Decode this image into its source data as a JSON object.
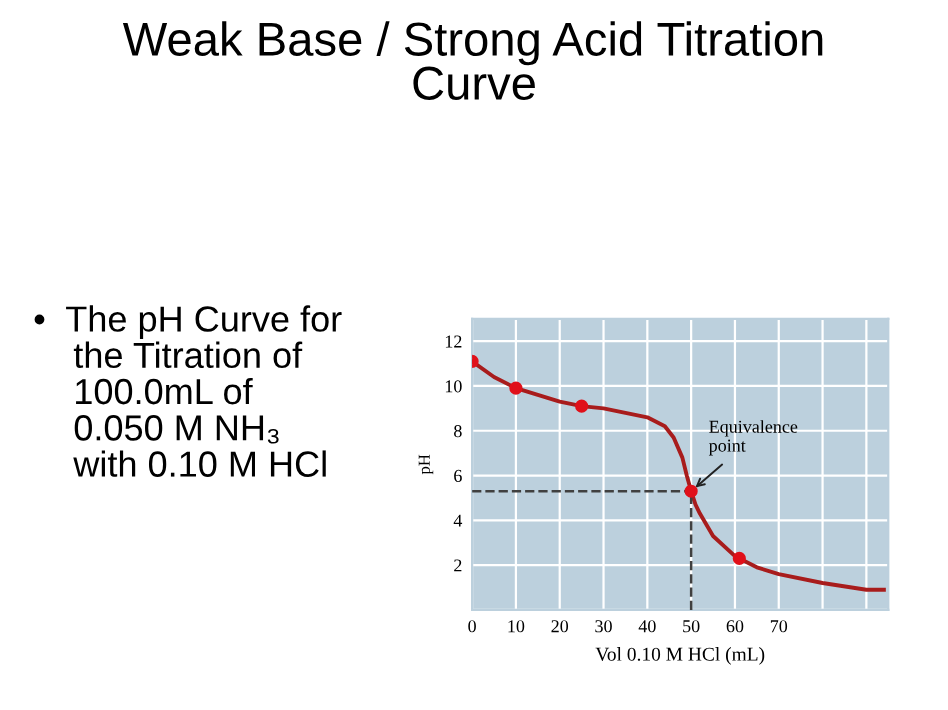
{
  "chart_data": {
    "type": "line",
    "title": "Weak Base / Strong Acid Titration\nCurve",
    "xlabel": "Vol 0.10 M HCl (mL)",
    "ylabel": "pH",
    "annotations": [
      "•  The pH Curve for\n    the Titration of\n    100.0mL of\n    0.050 M NH₃\n    with 0.10 M HCl",
      {
        "text": "Equivalence\npoint",
        "x": 50,
        "y": 5.3
      }
    ],
    "series": [
      {
        "color": "#a81c1c",
        "marker": "none",
        "line_style": "solid",
        "x": [
          0,
          5,
          10,
          15,
          20,
          25,
          30,
          35,
          40,
          44,
          46,
          48,
          49,
          50,
          51,
          52,
          55,
          60,
          65,
          70,
          80,
          90,
          94
        ],
        "values": [
          11.1,
          10.4,
          9.9,
          9.6,
          9.3,
          9.1,
          9.0,
          8.8,
          8.6,
          8.2,
          7.7,
          6.8,
          6.0,
          5.3,
          4.7,
          4.3,
          3.3,
          2.4,
          1.9,
          1.6,
          1.2,
          0.9,
          0.9
        ]
      },
      {
        "type": "scatter",
        "color": "#e0101a",
        "marker": "circle",
        "x": [
          0,
          10,
          25,
          50,
          61
        ],
        "values": [
          11.1,
          9.9,
          9.1,
          5.3,
          2.3
        ]
      },
      {
        "color": "#404040",
        "marker": "none",
        "line_style": "dashed",
        "x": [
          0,
          50
        ],
        "values": [
          5.3,
          5.3
        ]
      },
      {
        "color": "#404040",
        "marker": "none",
        "line_style": "dashed",
        "x": [
          50,
          50
        ],
        "values": [
          0,
          5.3
        ]
      }
    ],
    "xlim": [
      0,
      95
    ],
    "ylim": [
      0,
      13
    ],
    "xticks": [
      0,
      10,
      20,
      30,
      40,
      50,
      60,
      70,
      {
        "value": 80,
        "label": null
      },
      {
        "value": 90,
        "label": null
      }
    ],
    "yticks": [
      {
        "value": 0,
        "label": null
      },
      2,
      4,
      6,
      8,
      10,
      12
    ],
    "grid": true
  }
}
